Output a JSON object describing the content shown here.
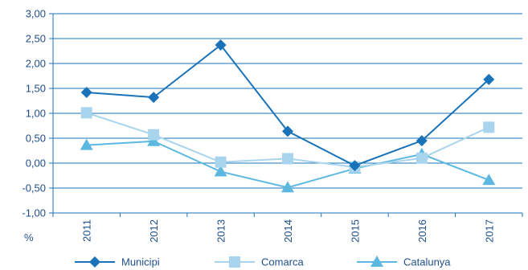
{
  "chart_data": {
    "type": "line",
    "ylabel": "%",
    "ylim": [
      -1.0,
      3.0
    ],
    "yticks": [
      "3,00",
      "2,50",
      "2,00",
      "1,50",
      "1,00",
      "0,50",
      "0,00",
      "-0,50",
      "-1,00"
    ],
    "yticks_values": [
      3.0,
      2.5,
      2.0,
      1.5,
      1.0,
      0.5,
      0.0,
      -0.5,
      -1.0
    ],
    "categories": [
      "2011",
      "2012",
      "2013",
      "2014",
      "2015",
      "2016",
      "2017"
    ],
    "grid": "horizontal",
    "legend_position": "bottom",
    "series": [
      {
        "name": "Municipi",
        "values": [
          1.42,
          1.32,
          2.37,
          0.64,
          -0.05,
          0.45,
          1.68
        ],
        "color": "#1a73b8",
        "marker": "diamond"
      },
      {
        "name": "Comarca",
        "values": [
          1.01,
          0.57,
          0.02,
          0.09,
          -0.08,
          0.1,
          0.72
        ],
        "color": "#a9d4ee",
        "marker": "square"
      },
      {
        "name": "Catalunya",
        "values": [
          0.36,
          0.44,
          -0.17,
          -0.49,
          -0.11,
          0.18,
          -0.34
        ],
        "color": "#5cb8e0",
        "marker": "triangle"
      }
    ]
  }
}
